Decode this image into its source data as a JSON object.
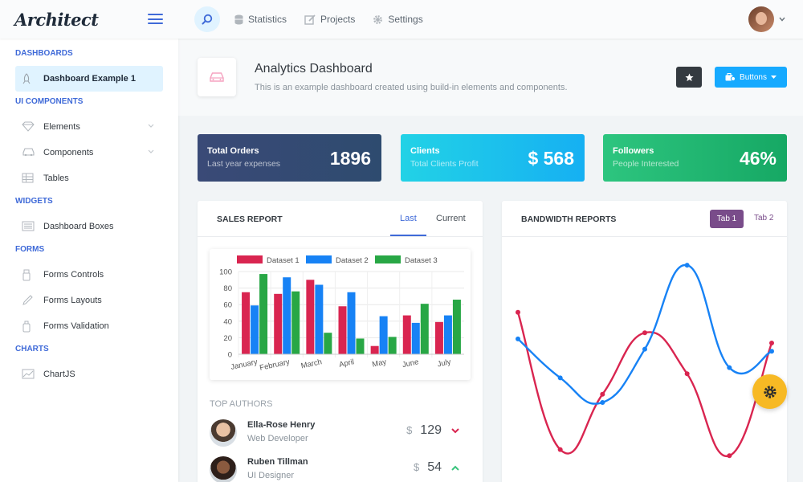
{
  "app": {
    "logo": "Architect"
  },
  "topnav": {
    "items": [
      {
        "label": "Statistics",
        "icon": "database-icon"
      },
      {
        "label": "Projects",
        "icon": "edit-icon"
      },
      {
        "label": "Settings",
        "icon": "gear-icon"
      }
    ]
  },
  "sidebar": {
    "sections": [
      {
        "heading": "DASHBOARDS",
        "items": [
          {
            "label": "Dashboard Example 1",
            "icon": "rocket-icon",
            "active": true
          }
        ]
      },
      {
        "heading": "UI COMPONENTS",
        "items": [
          {
            "label": "Elements",
            "icon": "diamond-icon",
            "expandable": true
          },
          {
            "label": "Components",
            "icon": "car-icon",
            "expandable": true
          },
          {
            "label": "Tables",
            "icon": "table-icon"
          }
        ]
      },
      {
        "heading": "WIDGETS",
        "items": [
          {
            "label": "Dashboard Boxes",
            "icon": "display-icon"
          }
        ]
      },
      {
        "heading": "FORMS",
        "items": [
          {
            "label": "Forms Controls",
            "icon": "light-icon"
          },
          {
            "label": "Forms Layouts",
            "icon": "pencil-icon"
          },
          {
            "label": "Forms Validation",
            "icon": "bottle-icon"
          }
        ]
      },
      {
        "heading": "CHARTS",
        "items": [
          {
            "label": "ChartJS",
            "icon": "graph-icon"
          }
        ]
      }
    ]
  },
  "page": {
    "title": "Analytics Dashboard",
    "subtitle": "This is an example dashboard created using build-in elements and components.",
    "buttons_label": "Buttons"
  },
  "stats": {
    "orders": {
      "title": "Total Orders",
      "subtitle": "Last year expenses",
      "value": "1896"
    },
    "clients": {
      "title": "Clients",
      "subtitle": "Total Clients Profit",
      "value": "$ 568"
    },
    "followers": {
      "title": "Followers",
      "subtitle": "People Interested",
      "value": "46%"
    }
  },
  "sales_report": {
    "title": "SALES REPORT",
    "tabs": [
      "Last",
      "Current"
    ],
    "authors_heading": "TOP AUTHORS",
    "authors": [
      {
        "name": "Ella-Rose Henry",
        "role": "Web Developer",
        "currency": "$",
        "amount": "129",
        "trend": "down"
      },
      {
        "name": "Ruben Tillman",
        "role": "UI Designer",
        "currency": "$",
        "amount": "54",
        "trend": "up"
      }
    ]
  },
  "bandwidth": {
    "title": "BANDWIDTH REPORTS",
    "tabs": [
      "Tab 1",
      "Tab 2"
    ]
  },
  "colors": {
    "primary": "#3f6ad8",
    "info": "#16aaff",
    "danger": "#d92550",
    "success": "#3ac47d",
    "warning": "#f7b924",
    "alt": "#794c8a"
  },
  "chart_data": [
    {
      "type": "bar",
      "categories": [
        "January",
        "February",
        "March",
        "April",
        "May",
        "June",
        "July"
      ],
      "series": [
        {
          "name": "Dataset 1",
          "color": "#d92550",
          "values": [
            75,
            73,
            90,
            58,
            10,
            47,
            39
          ]
        },
        {
          "name": "Dataset 2",
          "color": "#1782f5",
          "values": [
            59,
            93,
            84,
            75,
            46,
            38,
            47
          ]
        },
        {
          "name": "Dataset 3",
          "color": "#28a745",
          "values": [
            97,
            76,
            26,
            19,
            21,
            61,
            66
          ]
        }
      ],
      "ylim": [
        0,
        100
      ],
      "yticks": [
        0,
        20,
        40,
        60,
        80,
        100
      ],
      "legend": "top",
      "grid": true
    },
    {
      "type": "line",
      "series": [
        {
          "color": "#d92550",
          "values": [
            75,
            8,
            35,
            65,
            45,
            5,
            60
          ]
        },
        {
          "color": "#1782f5",
          "values": [
            62,
            43,
            31,
            57,
            98,
            48,
            56
          ]
        }
      ],
      "x": [
        1,
        2,
        3,
        4,
        5,
        6,
        7
      ],
      "ylim": [
        0,
        100
      ],
      "grid": false
    }
  ]
}
